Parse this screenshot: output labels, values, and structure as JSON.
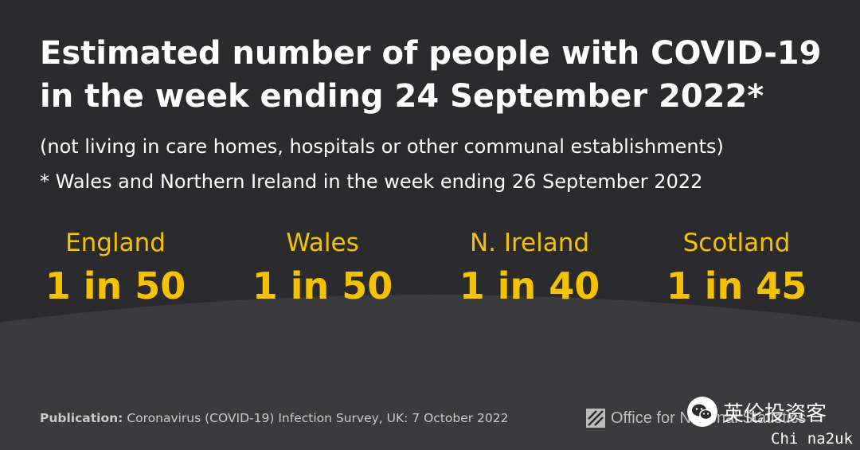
{
  "header": {
    "title_line1": "Estimated number of people with COVID-19",
    "title_line2": "in the week ending 24 September 2022*",
    "subtitle": "(not living in care homes, hospitals or other communal establishments)",
    "footnote": "* Wales and Northern Ireland in the week ending 26 September 2022"
  },
  "regions": [
    {
      "name": "England",
      "value": "1 in 50"
    },
    {
      "name": "Wales",
      "value": "1 in 50"
    },
    {
      "name": "N. Ireland",
      "value": "1 in 40"
    },
    {
      "name": "Scotland",
      "value": "1 in 45"
    }
  ],
  "footer": {
    "publication_label": "Publication:",
    "publication_text": "Coronavirus (COVID-19) Infection Survey, UK: 7 October 2022",
    "ons_text": "Office for National Statistics"
  },
  "watermark": {
    "wechat_text": "英伦投资客",
    "corner_text": "Chi na2uk"
  },
  "colors": {
    "background": "#2b2b2d",
    "background_lower": "#3b3b3d",
    "accent": "#f4c200",
    "text": "#ffffff"
  },
  "icons": {
    "ons_logo": "ons-logo-icon",
    "wechat": "wechat-icon"
  }
}
